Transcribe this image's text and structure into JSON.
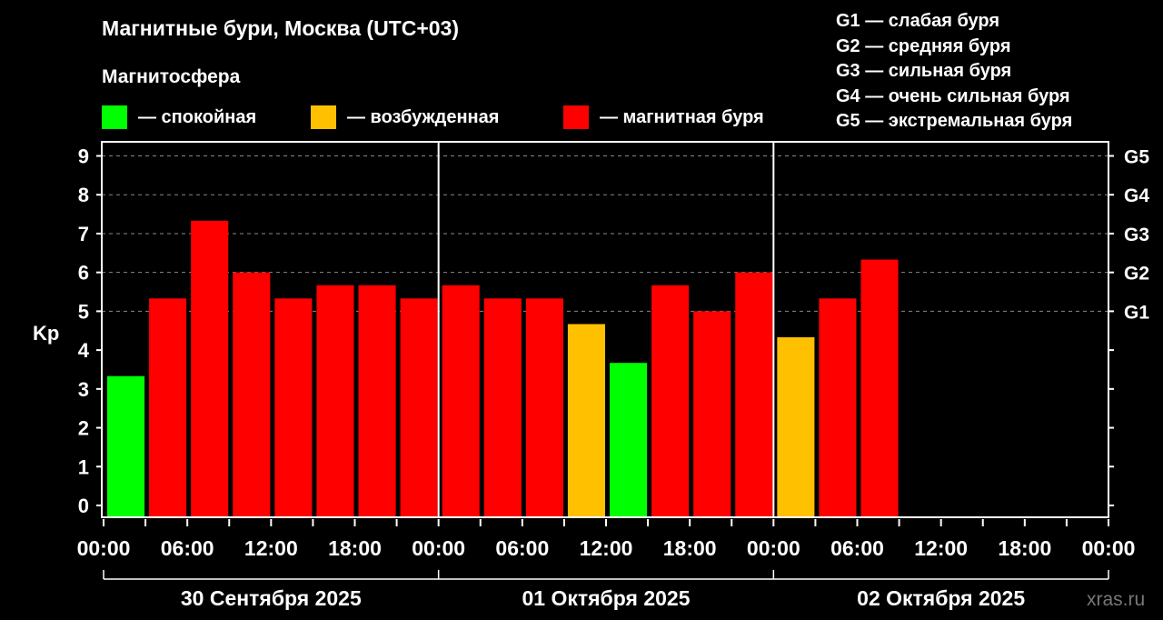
{
  "title": "Магнитные бури, Москва (UTC+03)",
  "legend_title": "Магнитосфера",
  "legend": [
    {
      "label": "— спокойная",
      "color": "#00ff00"
    },
    {
      "label": "— возбужденная",
      "color": "#ffc000"
    },
    {
      "label": "— магнитная буря",
      "color": "#ff0000"
    }
  ],
  "storm_scale": [
    "G1 — слабая буря",
    "G2 — средняя буря",
    "G3 — сильная буря",
    "G4 — очень сильная буря",
    "G5 — экстремальная буря"
  ],
  "watermark": "xras.ru",
  "chart_data": {
    "type": "bar",
    "ylabel": "Kp",
    "ylim": [
      0,
      9
    ],
    "yticks": [
      "0",
      "1",
      "2",
      "3",
      "4",
      "5",
      "6",
      "7",
      "8",
      "9"
    ],
    "right_ticks": [
      {
        "value": 5,
        "label": "G1"
      },
      {
        "value": 6,
        "label": "G2"
      },
      {
        "value": 7,
        "label": "G3"
      },
      {
        "value": 8,
        "label": "G4"
      },
      {
        "value": 9,
        "label": "G5"
      }
    ],
    "grid": "horizontal dashed",
    "xtick_labels": [
      "00:00",
      "06:00",
      "12:00",
      "18:00",
      "00:00",
      "06:00",
      "12:00",
      "18:00",
      "00:00",
      "06:00",
      "12:00",
      "18:00",
      "00:00"
    ],
    "days": [
      "30 Сентября 2025",
      "01 Октября 2025",
      "02 Октября 2025"
    ],
    "interval_hours": 3,
    "values": [
      3.33,
      5.33,
      7.33,
      6.0,
      5.33,
      5.67,
      5.67,
      5.33,
      5.67,
      5.33,
      5.33,
      4.67,
      3.67,
      5.67,
      5.0,
      6.0,
      4.33,
      5.33,
      6.33
    ],
    "levels": [
      "quiet",
      "storm",
      "storm",
      "storm",
      "storm",
      "storm",
      "storm",
      "storm",
      "storm",
      "storm",
      "storm",
      "active",
      "quiet",
      "storm",
      "storm",
      "storm",
      "active",
      "storm",
      "storm"
    ],
    "level_colors": {
      "quiet": "#00ff00",
      "active": "#ffc000",
      "storm": "#ff0000"
    }
  }
}
